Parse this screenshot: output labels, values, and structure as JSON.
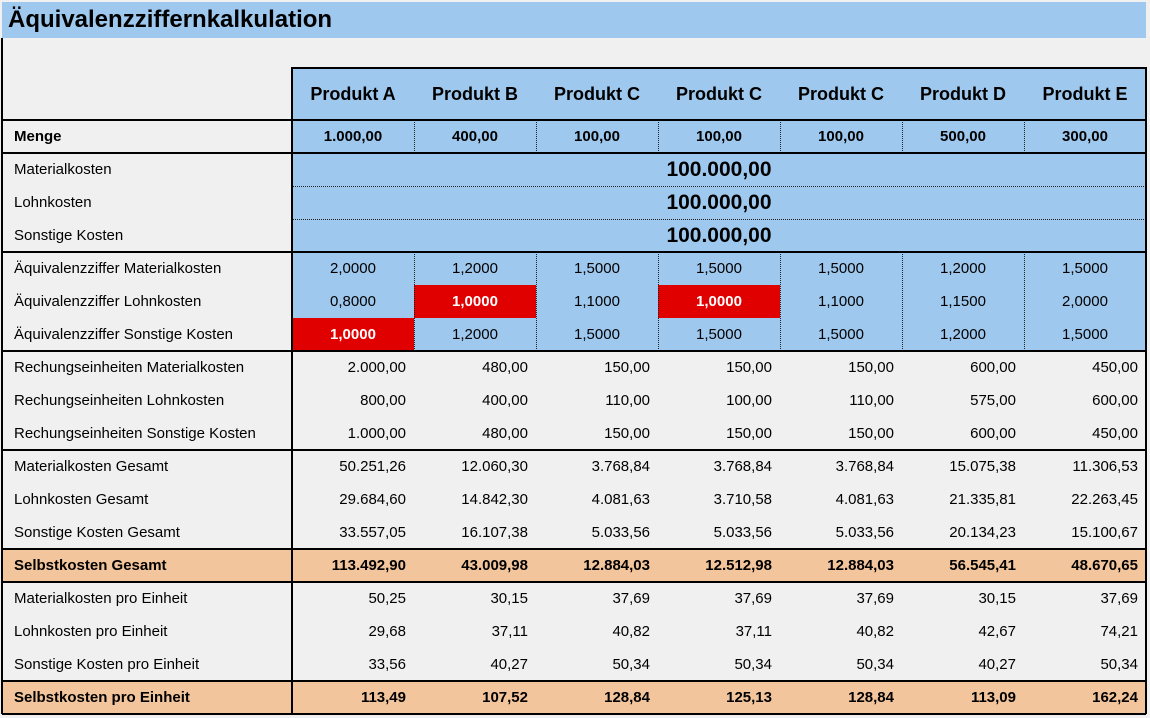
{
  "header": {
    "title": "Äquivalenzziffernkalkulation"
  },
  "columns": [
    "Produkt A",
    "Produkt B",
    "Produkt C",
    "Produkt C",
    "Produkt C",
    "Produkt D",
    "Produkt E"
  ],
  "menge": {
    "label": "Menge",
    "values": [
      "1.000,00",
      "400,00",
      "100,00",
      "100,00",
      "100,00",
      "500,00",
      "300,00"
    ]
  },
  "kosten": [
    {
      "label": "Materialkosten",
      "value": "100.000,00"
    },
    {
      "label": "Lohnkosten",
      "value": "100.000,00"
    },
    {
      "label": "Sonstige Kosten",
      "value": "100.000,00"
    }
  ],
  "ziffern": [
    {
      "label": "Äquivalenzziffer Materialkosten",
      "values": [
        "2,0000",
        "1,2000",
        "1,5000",
        "1,5000",
        "1,5000",
        "1,2000",
        "1,5000"
      ]
    },
    {
      "label": "Äquivalenzziffer Lohnkosten",
      "values": [
        "0,8000",
        "1,0000",
        "1,1000",
        "1,0000",
        "1,1000",
        "1,1500",
        "2,0000"
      ]
    },
    {
      "label": "Äquivalenzziffer Sonstige Kosten",
      "values": [
        "1,0000",
        "1,2000",
        "1,5000",
        "1,5000",
        "1,5000",
        "1,2000",
        "1,5000"
      ]
    }
  ],
  "einheiten": [
    {
      "label": "Rechungseinheiten Materialkosten",
      "values": [
        "2.000,00",
        "480,00",
        "150,00",
        "150,00",
        "150,00",
        "600,00",
        "450,00"
      ]
    },
    {
      "label": "Rechungseinheiten Lohnkosten",
      "values": [
        "800,00",
        "400,00",
        "110,00",
        "100,00",
        "110,00",
        "575,00",
        "600,00"
      ]
    },
    {
      "label": "Rechungseinheiten Sonstige Kosten",
      "values": [
        "1.000,00",
        "480,00",
        "150,00",
        "150,00",
        "150,00",
        "600,00",
        "450,00"
      ]
    }
  ],
  "gesamt": [
    {
      "label": "Materialkosten Gesamt",
      "values": [
        "50.251,26",
        "12.060,30",
        "3.768,84",
        "3.768,84",
        "3.768,84",
        "15.075,38",
        "11.306,53"
      ]
    },
    {
      "label": "Lohnkosten Gesamt",
      "values": [
        "29.684,60",
        "14.842,30",
        "4.081,63",
        "3.710,58",
        "4.081,63",
        "21.335,81",
        "22.263,45"
      ]
    },
    {
      "label": "Sonstige Kosten Gesamt",
      "values": [
        "33.557,05",
        "16.107,38",
        "5.033,56",
        "5.033,56",
        "5.033,56",
        "20.134,23",
        "15.100,67"
      ]
    }
  ],
  "selbstkosten_gesamt": {
    "label": "Selbstkosten Gesamt",
    "values": [
      "113.492,90",
      "43.009,98",
      "12.884,03",
      "12.512,98",
      "12.884,03",
      "56.545,41",
      "48.670,65"
    ]
  },
  "pro_einheit": [
    {
      "label": "Materialkosten pro Einheit",
      "values": [
        "50,25",
        "30,15",
        "37,69",
        "37,69",
        "37,69",
        "30,15",
        "37,69"
      ]
    },
    {
      "label": "Lohnkosten pro Einheit",
      "values": [
        "29,68",
        "37,11",
        "40,82",
        "37,11",
        "40,82",
        "42,67",
        "74,21"
      ]
    },
    {
      "label": "Sonstige Kosten pro Einheit",
      "values": [
        "33,56",
        "40,27",
        "50,34",
        "50,34",
        "50,34",
        "40,27",
        "50,34"
      ]
    }
  ],
  "selbstkosten_pro_einheit": {
    "label": "Selbstkosten pro Einheit",
    "values": [
      "113,49",
      "107,52",
      "128,84",
      "125,13",
      "128,84",
      "113,09",
      "162,24"
    ]
  }
}
